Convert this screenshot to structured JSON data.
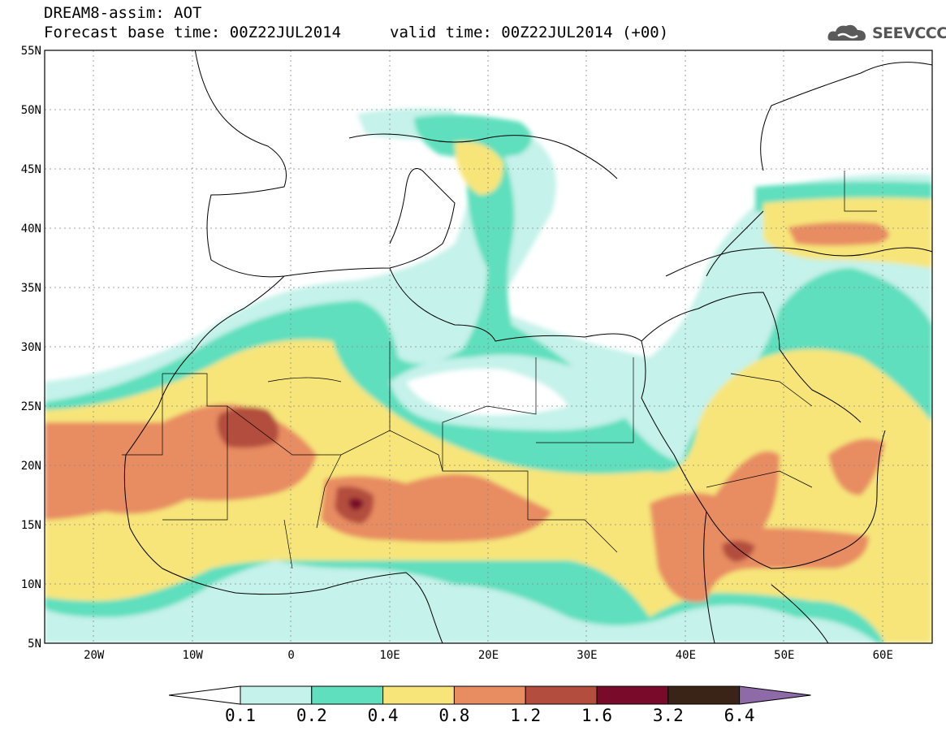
{
  "header": {
    "title": "DREAM8-assim: AOT",
    "base_time": "Forecast base time: 00Z22JUL2014",
    "valid_time": "valid time: 00Z22JUL2014 (+00)"
  },
  "logo": {
    "text": "SEEVCCC",
    "icon": "cloud-icon"
  },
  "axes": {
    "lat_labels": [
      "55N",
      "50N",
      "45N",
      "40N",
      "35N",
      "30N",
      "25N",
      "20N",
      "15N",
      "10N",
      "5N"
    ],
    "lon_labels": [
      "20W",
      "10W",
      "0",
      "10E",
      "20E",
      "30E",
      "40E",
      "50E",
      "60E"
    ],
    "lat_range": [
      5,
      55
    ],
    "lon_range": [
      -25,
      65
    ]
  },
  "colorbar": {
    "labels": [
      "0.1",
      "0.2",
      "0.4",
      "0.8",
      "1.2",
      "1.6",
      "3.2",
      "6.4"
    ],
    "colors": [
      "#ffffff",
      "#c5f2ea",
      "#5fdfbd",
      "#f7e57a",
      "#e88c62",
      "#b34e3e",
      "#7a0a2a",
      "#3a2417",
      "#8e6aa8"
    ]
  }
}
